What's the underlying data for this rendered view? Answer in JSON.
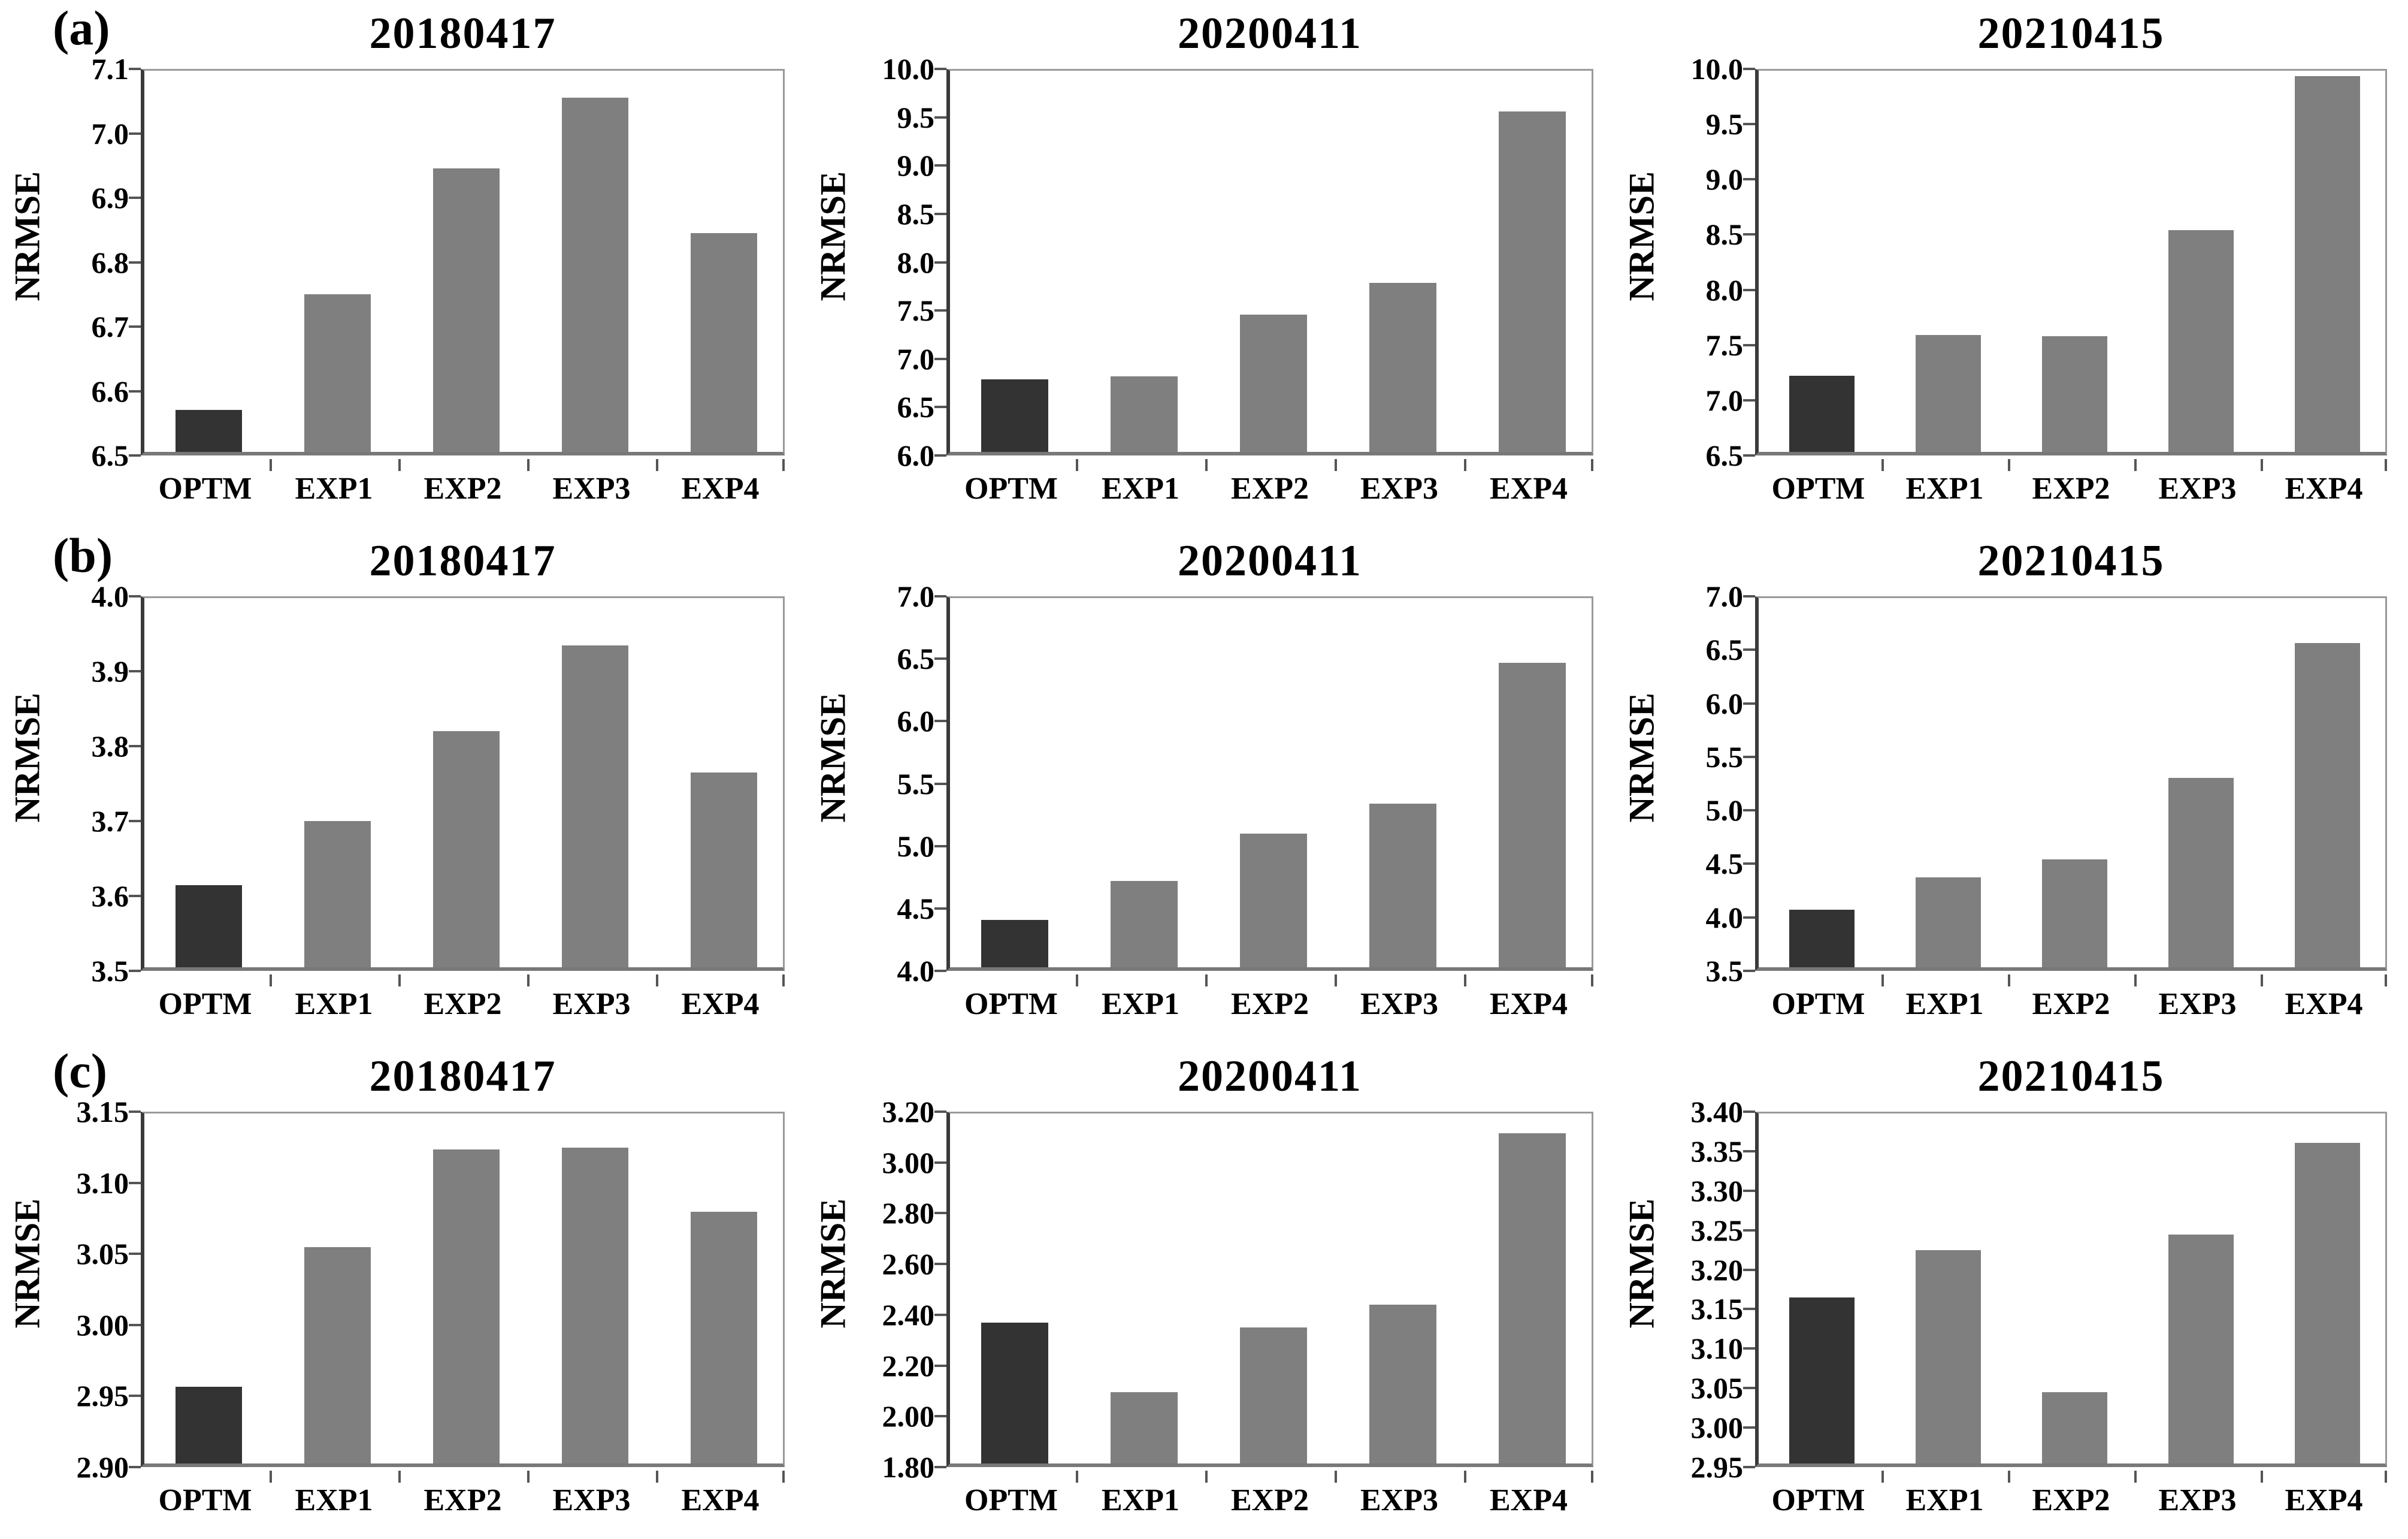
{
  "page": {
    "background": "#ffffff"
  },
  "colors": {
    "optm_bar": "#333333",
    "exp_bar": "#7f7f7f",
    "axis": "#555555",
    "box_border": "#9a9a9a",
    "text": "#000000"
  },
  "chart_data": [
    {
      "type": "bar",
      "panel_label": "(a)",
      "title": "20180417",
      "ylabel": "NRMSE",
      "categories": [
        "OPTM",
        "EXP1",
        "EXP2",
        "EXP3",
        "EXP4"
      ],
      "values": [
        6.565,
        6.745,
        6.94,
        7.05,
        6.84
      ],
      "ylim": [
        6.5,
        7.1
      ],
      "ytick_step": 0.1,
      "decimals": 1,
      "grid": false,
      "highlight_index": 0
    },
    {
      "type": "bar",
      "panel_label": "",
      "title": "20200411",
      "ylabel": "NRMSE",
      "categories": [
        "OPTM",
        "EXP1",
        "EXP2",
        "EXP3",
        "EXP4"
      ],
      "values": [
        6.75,
        6.78,
        7.42,
        7.75,
        9.52
      ],
      "ylim": [
        6.0,
        10.0
      ],
      "ytick_step": 0.5,
      "decimals": 1,
      "grid": false,
      "highlight_index": 0
    },
    {
      "type": "bar",
      "panel_label": "",
      "title": "20210415",
      "ylabel": "NRMSE",
      "categories": [
        "OPTM",
        "EXP1",
        "EXP2",
        "EXP3",
        "EXP4"
      ],
      "values": [
        7.19,
        7.56,
        7.55,
        8.51,
        9.9
      ],
      "ylim": [
        6.5,
        10.0
      ],
      "ytick_step": 0.5,
      "decimals": 1,
      "grid": false,
      "highlight_index": 0
    },
    {
      "type": "bar",
      "panel_label": "(b)",
      "title": "20180417",
      "ylabel": "NRMSE",
      "categories": [
        "OPTM",
        "EXP1",
        "EXP2",
        "EXP3",
        "EXP4"
      ],
      "values": [
        3.61,
        3.695,
        3.815,
        3.93,
        3.76
      ],
      "ylim": [
        3.5,
        4.0
      ],
      "ytick_step": 0.1,
      "decimals": 1,
      "grid": false,
      "highlight_index": 0
    },
    {
      "type": "bar",
      "panel_label": "",
      "title": "20200411",
      "ylabel": "NRMSE",
      "categories": [
        "OPTM",
        "EXP1",
        "EXP2",
        "EXP3",
        "EXP4"
      ],
      "values": [
        4.38,
        4.69,
        5.07,
        5.31,
        6.44
      ],
      "ylim": [
        4.0,
        7.0
      ],
      "ytick_step": 0.5,
      "decimals": 1,
      "grid": false,
      "highlight_index": 0
    },
    {
      "type": "bar",
      "panel_label": "",
      "title": "20210415",
      "ylabel": "NRMSE",
      "categories": [
        "OPTM",
        "EXP1",
        "EXP2",
        "EXP3",
        "EXP4"
      ],
      "values": [
        4.04,
        4.34,
        4.51,
        5.27,
        6.53
      ],
      "ylim": [
        3.5,
        7.0
      ],
      "ytick_step": 0.5,
      "decimals": 1,
      "grid": false,
      "highlight_index": 0
    },
    {
      "type": "bar",
      "panel_label": "(c)",
      "title": "20180417",
      "ylabel": "NRMSE",
      "categories": [
        "OPTM",
        "EXP1",
        "EXP2",
        "EXP3",
        "EXP4"
      ],
      "values": [
        2.954,
        3.052,
        3.121,
        3.122,
        3.077
      ],
      "ylim": [
        2.9,
        3.15
      ],
      "ytick_step": 0.05,
      "decimals": 2,
      "grid": false,
      "highlight_index": 0
    },
    {
      "type": "bar",
      "panel_label": "",
      "title": "20200411",
      "ylabel": "NRMSE",
      "categories": [
        "OPTM",
        "EXP1",
        "EXP2",
        "EXP3",
        "EXP4"
      ],
      "values": [
        2.355,
        2.08,
        2.335,
        2.425,
        3.1
      ],
      "ylim": [
        1.8,
        3.2
      ],
      "ytick_step": 0.2,
      "decimals": 2,
      "grid": false,
      "highlight_index": 0
    },
    {
      "type": "bar",
      "panel_label": "",
      "title": "20210415",
      "ylabel": "NRMSE",
      "categories": [
        "OPTM",
        "EXP1",
        "EXP2",
        "EXP3",
        "EXP4"
      ],
      "values": [
        3.16,
        3.22,
        3.04,
        3.24,
        3.356
      ],
      "ylim": [
        2.95,
        3.4
      ],
      "ytick_step": 0.05,
      "decimals": 2,
      "grid": false,
      "highlight_index": 0
    }
  ]
}
